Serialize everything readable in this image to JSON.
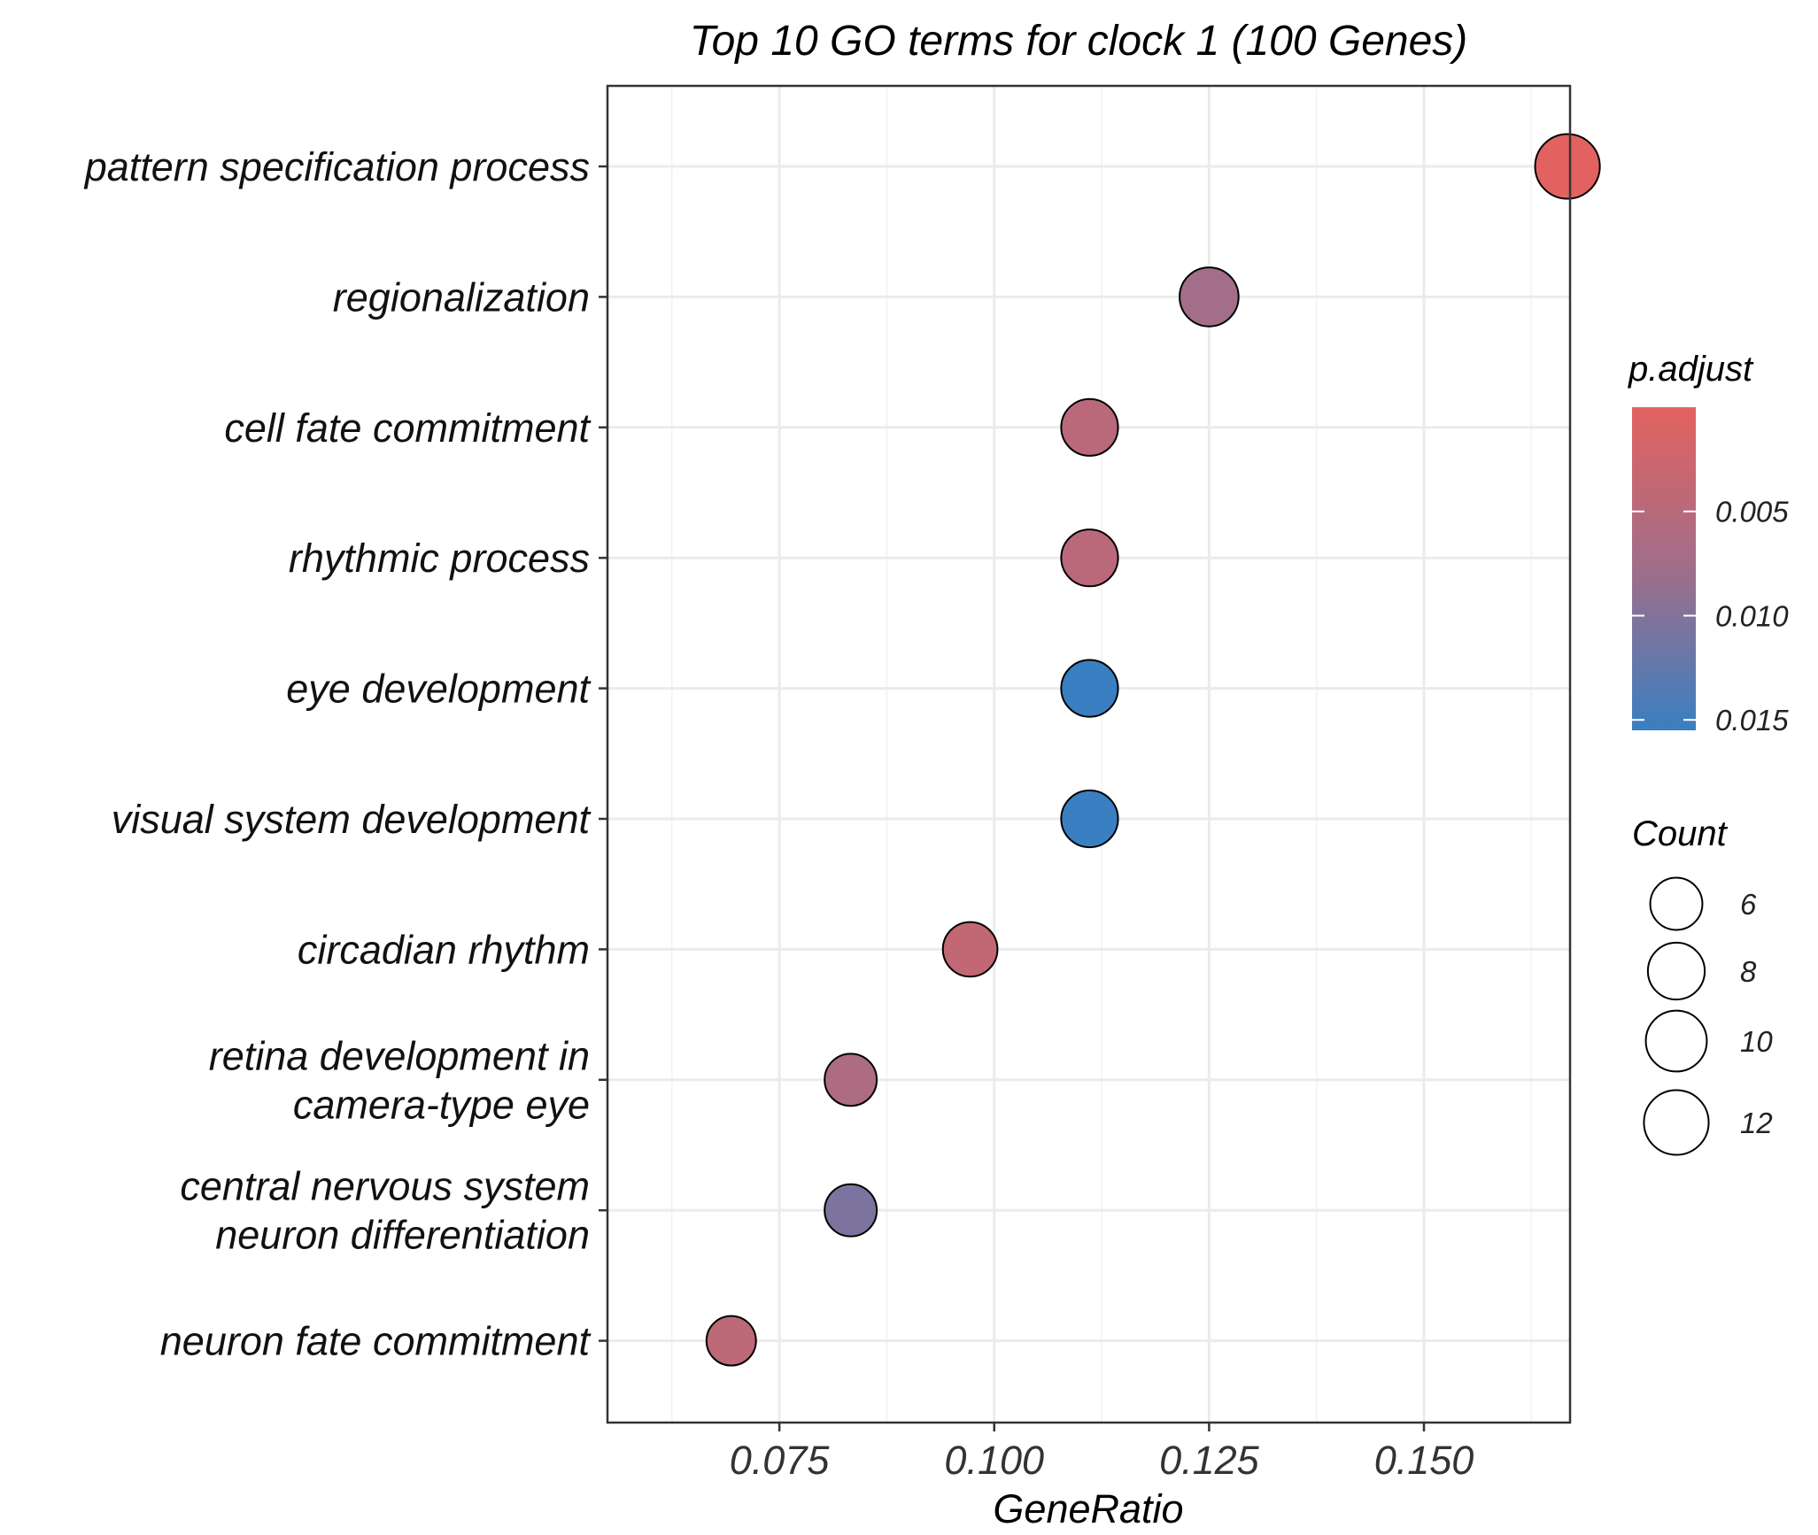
{
  "chart_data": {
    "type": "scatter",
    "title": "Top 10 GO terms for clock 1 (100 Genes)",
    "xlabel": "GeneRatio",
    "ylabel": "",
    "xlim": [
      0.055,
      0.167
    ],
    "x_ticks": [
      0.075,
      0.1,
      0.125,
      0.15
    ],
    "x_tick_labels": [
      "0.075",
      "0.100",
      "0.125",
      "0.150"
    ],
    "grid": true,
    "categories": [
      "pattern specification process",
      "regionalization",
      "cell fate commitment",
      "rhythmic process",
      "eye development",
      "visual system development",
      "circadian rhythm",
      "retina development in camera-type eye",
      "central nervous system neuron differentiation",
      "neuron fate commitment"
    ],
    "category_display": [
      [
        "pattern specification process"
      ],
      [
        "regionalization"
      ],
      [
        "cell fate commitment"
      ],
      [
        "rhythmic process"
      ],
      [
        "eye development"
      ],
      [
        "visual system development"
      ],
      [
        "circadian rhythm"
      ],
      [
        "retina development in",
        "camera-type eye"
      ],
      [
        "central nervous system",
        "neuron differentiation"
      ],
      [
        "neuron fate commitment"
      ]
    ],
    "points": [
      {
        "term": "pattern specification process",
        "gene_ratio": 0.1667,
        "count": 12,
        "p_adjust": 0.0002
      },
      {
        "term": "regionalization",
        "gene_ratio": 0.125,
        "count": 9,
        "p_adjust": 0.0075
      },
      {
        "term": "cell fate commitment",
        "gene_ratio": 0.1111,
        "count": 8,
        "p_adjust": 0.0048
      },
      {
        "term": "rhythmic process",
        "gene_ratio": 0.1111,
        "count": 8,
        "p_adjust": 0.0048
      },
      {
        "term": "eye development",
        "gene_ratio": 0.1111,
        "count": 8,
        "p_adjust": 0.0155
      },
      {
        "term": "visual system development",
        "gene_ratio": 0.1111,
        "count": 8,
        "p_adjust": 0.0155
      },
      {
        "term": "circadian rhythm",
        "gene_ratio": 0.0972,
        "count": 7,
        "p_adjust": 0.0038
      },
      {
        "term": "retina development in camera-type eye",
        "gene_ratio": 0.0833,
        "count": 6,
        "p_adjust": 0.0062
      },
      {
        "term": "central nervous system neuron differentiation",
        "gene_ratio": 0.0833,
        "count": 6,
        "p_adjust": 0.0105
      },
      {
        "term": "neuron fate commitment",
        "gene_ratio": 0.0694,
        "count": 5,
        "p_adjust": 0.0045
      }
    ],
    "color_legend": {
      "title": "p.adjust",
      "min": 0.0,
      "max": 0.0155,
      "ticks": [
        0.005,
        0.01,
        0.015
      ],
      "tick_labels": [
        "0.005",
        "0.010",
        "0.015"
      ],
      "low_color": "#e3625f",
      "high_color": "#3a7fc1",
      "placement": "right"
    },
    "size_legend": {
      "title": "Count",
      "values": [
        6,
        8,
        10,
        12
      ],
      "labels": [
        "6",
        "8",
        "10",
        "12"
      ],
      "placement": "right"
    }
  }
}
